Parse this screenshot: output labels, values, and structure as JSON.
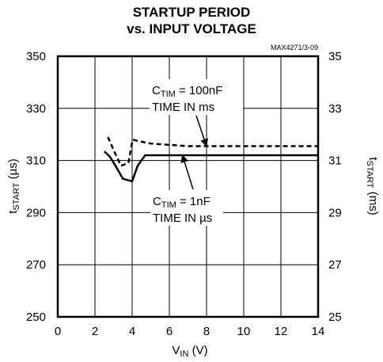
{
  "chart_data": {
    "type": "line",
    "title_line1": "STARTUP PERIOD",
    "title_line2": "vs. INPUT VOLTAGE",
    "figure_code": "MAX4271/3-09",
    "xlabel": {
      "main": "V",
      "sub": "IN",
      "unit": " (V)"
    },
    "ylabel_left": {
      "main": "t",
      "sub": "START",
      "unit": " (µs)"
    },
    "ylabel_right": {
      "main": "t",
      "sub": "START",
      "unit": " (ms)"
    },
    "xlim": [
      0,
      14
    ],
    "ylim_left": [
      250,
      350
    ],
    "ylim_right": [
      25,
      35
    ],
    "x_ticks": [
      "0",
      "2",
      "4",
      "6",
      "8",
      "10",
      "12",
      "14"
    ],
    "y_ticks_left": [
      "250",
      "270",
      "290",
      "310",
      "330",
      "350"
    ],
    "y_ticks_right": [
      "25",
      "27",
      "29",
      "31",
      "33",
      "35"
    ],
    "grid": true,
    "series": [
      {
        "style": "dashed",
        "axis": "right",
        "x": [
          2.7,
          3.0,
          3.4,
          3.8,
          4.0,
          4.05,
          4.3,
          5.0,
          6.0,
          7.0,
          8.0,
          10.0,
          12.0,
          14.0
        ],
        "y": [
          31.9,
          31.4,
          30.8,
          30.9,
          31.7,
          31.8,
          31.75,
          31.65,
          31.6,
          31.55,
          31.55,
          31.55,
          31.55,
          31.55
        ]
      },
      {
        "style": "solid",
        "axis": "left",
        "x": [
          2.5,
          2.8,
          3.1,
          3.5,
          3.75,
          4.0,
          4.3,
          4.7,
          5.0,
          6.0,
          8.0,
          10.0,
          12.0,
          14.0
        ],
        "y": [
          313.5,
          311.5,
          308.0,
          303.0,
          302.5,
          302.0,
          308.0,
          312.0,
          312.0,
          312.0,
          312.0,
          312.0,
          312.0,
          312.0
        ]
      }
    ],
    "annotations": [
      {
        "name": "ctim-100nf",
        "line1_main": "C",
        "line1_sub": "TIM",
        "line1_rest": " = 100nF",
        "line2": "TIME IN ms",
        "arrow_to_x": 8.0,
        "arrow_to_y": 31.55,
        "arrow_axis": "right"
      },
      {
        "name": "ctim-1nf",
        "line1_main": "C",
        "line1_sub": "TIM",
        "line1_rest": " = 1nF",
        "line2": "TIME IN µs",
        "arrow_to_x": 6.7,
        "arrow_to_y": 312.0,
        "arrow_axis": "left"
      }
    ]
  }
}
